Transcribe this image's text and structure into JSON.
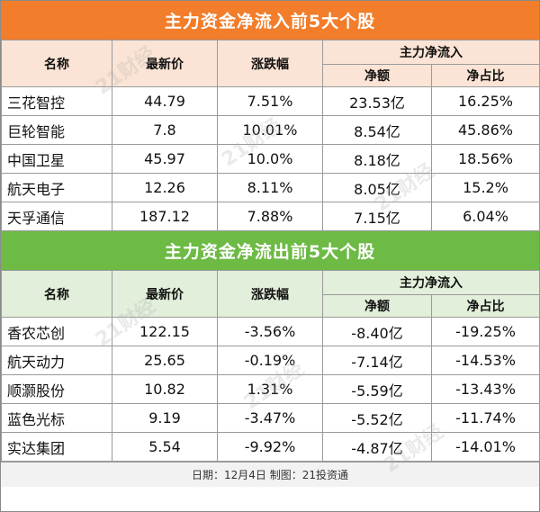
{
  "inflow": {
    "title": "主力资金净流入前5大个股",
    "headers": {
      "name": "名称",
      "price": "最新价",
      "change": "涨跌幅",
      "group": "主力净流入",
      "net": "净额",
      "ratio": "净占比"
    },
    "rows": [
      {
        "name": "三花智控",
        "price": "44.79",
        "change": "7.51%",
        "net": "23.53亿",
        "ratio": "16.25%"
      },
      {
        "name": "巨轮智能",
        "price": "7.8",
        "change": "10.01%",
        "net": "8.54亿",
        "ratio": "45.86%"
      },
      {
        "name": "中国卫星",
        "price": "45.97",
        "change": "10.0%",
        "net": "8.18亿",
        "ratio": "18.56%"
      },
      {
        "name": "航天电子",
        "price": "12.26",
        "change": "8.11%",
        "net": "8.05亿",
        "ratio": "15.2%"
      },
      {
        "name": "天孚通信",
        "price": "187.12",
        "change": "7.88%",
        "net": "7.15亿",
        "ratio": "6.04%"
      }
    ]
  },
  "outflow": {
    "title": "主力资金净流出前5大个股",
    "headers": {
      "name": "名称",
      "price": "最新价",
      "change": "涨跌幅",
      "group": "主力净流入",
      "net": "净额",
      "ratio": "净占比"
    },
    "rows": [
      {
        "name": "香农芯创",
        "price": "122.15",
        "change": "-3.56%",
        "net": "-8.40亿",
        "ratio": "-19.25%"
      },
      {
        "name": "航天动力",
        "price": "25.65",
        "change": "-0.19%",
        "net": "-7.14亿",
        "ratio": "-14.53%"
      },
      {
        "name": "顺灏股份",
        "price": "10.82",
        "change": "1.31%",
        "net": "-5.59亿",
        "ratio": "-13.43%"
      },
      {
        "name": "蓝色光标",
        "price": "9.19",
        "change": "-3.47%",
        "net": "-5.52亿",
        "ratio": "-11.74%"
      },
      {
        "name": "实达集团",
        "price": "5.54",
        "change": "-9.92%",
        "net": "-4.87亿",
        "ratio": "-14.01%"
      }
    ]
  },
  "footer": "日期：12月4日 制图：21投资通",
  "watermark": "21财经",
  "colors": {
    "inflow_banner": "#f27d2a",
    "inflow_header": "#fbe4d5",
    "outflow_banner": "#6dba45",
    "outflow_header": "#e2efda"
  }
}
